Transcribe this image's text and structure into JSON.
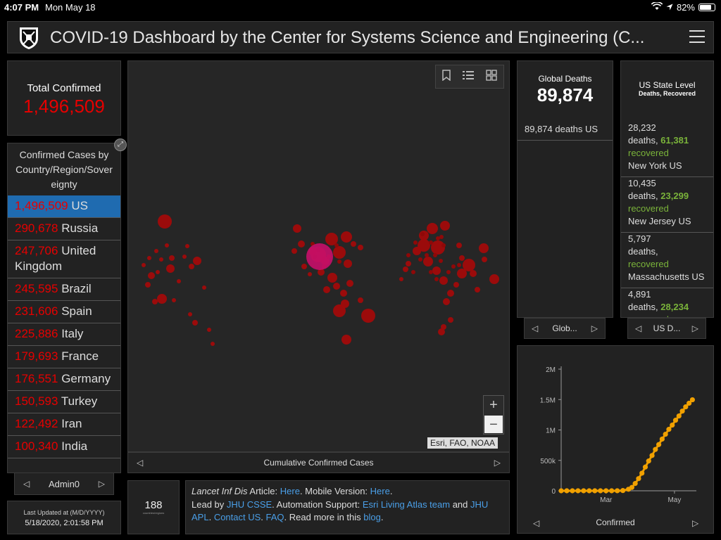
{
  "status_bar": {
    "time": "4:07 PM",
    "date": "Mon May 18",
    "battery": "82%",
    "battery_fraction": 0.82
  },
  "header": {
    "title": "COVID-19 Dashboard by the Center for Systems Science and Engineering (C..."
  },
  "total_confirmed": {
    "label": "Total Confirmed",
    "value": "1,496,509"
  },
  "country_list": {
    "title": "Confirmed Cases by Country/Region/Sover eignty",
    "items": [
      {
        "count": "1,496,509",
        "name": "US"
      },
      {
        "count": "290,678",
        "name": "Russia"
      },
      {
        "count": "247,706",
        "name": "United Kingdom"
      },
      {
        "count": "245,595",
        "name": "Brazil"
      },
      {
        "count": "231,606",
        "name": "Spain"
      },
      {
        "count": "225,886",
        "name": "Italy"
      },
      {
        "count": "179,693",
        "name": "France"
      },
      {
        "count": "176,551",
        "name": "Germany"
      },
      {
        "count": "150,593",
        "name": "Turkey"
      },
      {
        "count": "122,492",
        "name": "Iran"
      },
      {
        "count": "100,340",
        "name": "India"
      }
    ],
    "nav_label": "Admin0"
  },
  "last_updated": {
    "label": "Last Updated at (M/D/YYYY)",
    "value": "5/18/2020, 2:01:58 PM"
  },
  "map": {
    "nav_label": "Cumulative Confirmed Cases",
    "attribution": "Esri, FAO, NOAA",
    "zoom_in": "+",
    "zoom_out": "−"
  },
  "count_panel": {
    "value": "188",
    "sub": "countries/regions"
  },
  "info": {
    "journal": "Lancet Inf Dis",
    "t1": " Article: ",
    "here1": "Here",
    "t2": ". Mobile Version: ",
    "here2": "Here",
    "t3": ".",
    "t4": "Lead by ",
    "jhu_csse": "JHU CSSE",
    "t5": ". Automation Support: ",
    "esri": "Esri Living Atlas team",
    "t6": " and ",
    "jhu_apl": "JHU APL",
    "t7": ". ",
    "contact": "Contact US",
    "t8": ". ",
    "faq": "FAQ",
    "t9": ". Read more in this ",
    "blog": "blog",
    "t10": "."
  },
  "global_deaths": {
    "label": "Global Deaths",
    "value": "89,874",
    "row_text": "89,874 deaths US",
    "nav_label": "Glob..."
  },
  "us_state": {
    "label": "US State Level",
    "sub": "Deaths, Recovered",
    "rows": [
      {
        "deaths": "28,232",
        "deaths_word": "deaths,",
        "recovered": "61,381",
        "recovered_word": "recovered",
        "place": "New York US"
      },
      {
        "deaths": "10,435",
        "deaths_word": "deaths,",
        "recovered": "23,299",
        "recovered_word": "recovered",
        "place": "New Jersey US"
      },
      {
        "deaths": "5,797",
        "deaths_word": "deaths,",
        "recovered": "",
        "recovered_word": "recovered",
        "place": "Massachusetts US"
      },
      {
        "deaths": "4,891",
        "deaths_word": "deaths,",
        "recovered": "28,234",
        "recovered_word": "recovered",
        "place": ""
      }
    ],
    "nav_label": "US D..."
  },
  "chart_data": {
    "type": "line",
    "title": "",
    "xlabel": "Confirmed",
    "ylabel": "",
    "x_tick_labels": [
      "Mar",
      "May"
    ],
    "y_tick_labels": [
      "0",
      "500k",
      "1M",
      "1.5M",
      "2M"
    ],
    "y_ticks": [
      0,
      500000,
      1000000,
      1500000,
      2000000
    ],
    "ylim": [
      0,
      2000000
    ],
    "x_range_days": [
      0,
      118
    ],
    "x_tick_days": [
      40,
      101
    ],
    "color": "#f0a000",
    "series": [
      {
        "name": "Confirmed",
        "x": [
          0,
          5,
          10,
          15,
          20,
          25,
          30,
          35,
          40,
          45,
          50,
          55,
          60,
          63,
          66,
          69,
          72,
          75,
          78,
          81,
          84,
          87,
          90,
          93,
          96,
          99,
          102,
          105,
          108,
          111,
          114,
          117
        ],
        "y": [
          0,
          0,
          0,
          0,
          0,
          0,
          0,
          0,
          0,
          0,
          500,
          4000,
          25000,
          55000,
          120000,
          200000,
          290000,
          390000,
          490000,
          580000,
          680000,
          760000,
          850000,
          930000,
          1010000,
          1080000,
          1160000,
          1230000,
          1310000,
          1380000,
          1440000,
          1496509
        ]
      }
    ]
  },
  "chart_nav_label": "Confirmed"
}
